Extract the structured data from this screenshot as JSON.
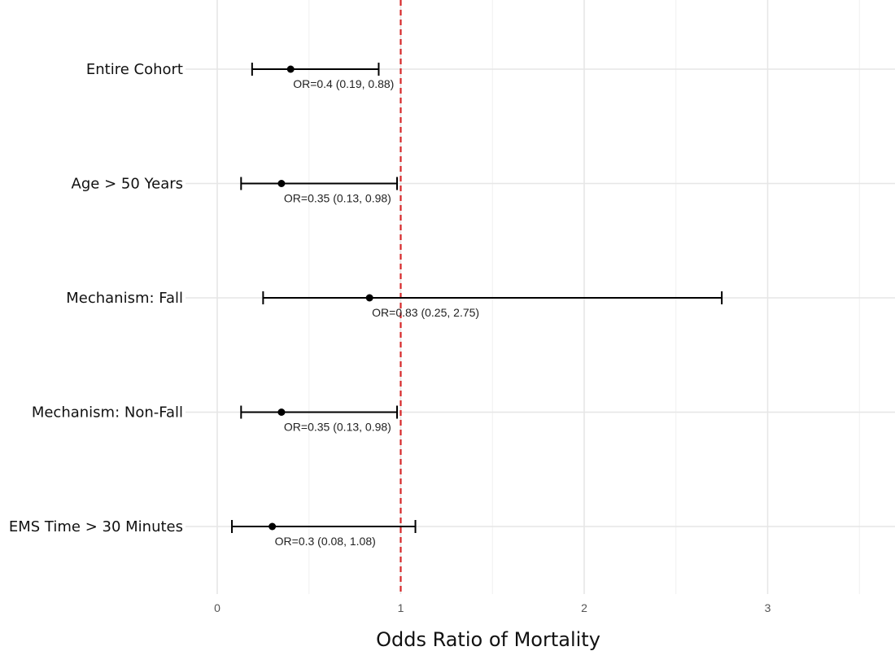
{
  "chart_data": {
    "type": "scatter",
    "subtype": "forest-plot",
    "title": "",
    "xlabel": "Odds Ratio of Mortality",
    "ylabel": "",
    "xlim": [
      0,
      3.7
    ],
    "xticks": [
      0,
      1,
      2,
      3
    ],
    "xtick_labels": [
      "0",
      "1",
      "2",
      "3"
    ],
    "grid": true,
    "reference_line": {
      "x": 1,
      "style": "dashed",
      "color": "#d62728"
    },
    "point_color": "#000000",
    "grid_color": "#e6e6e6",
    "categories": [
      "Entire Cohort",
      "Age > 50 Years",
      "Mechanism: Fall",
      "Mechanism: Non-Fall",
      "EMS Time > 30 Minutes"
    ],
    "or": [
      0.4,
      0.35,
      0.83,
      0.35,
      0.3
    ],
    "ci_lower": [
      0.19,
      0.13,
      0.25,
      0.13,
      0.08
    ],
    "ci_upper": [
      0.88,
      0.98,
      2.75,
      0.98,
      1.08
    ],
    "labels": [
      "OR=0.4 (0.19, 0.88)",
      "OR=0.35 (0.13, 0.98)",
      "OR=0.83 (0.25, 2.75)",
      "OR=0.35 (0.13, 0.98)",
      "OR=0.3 (0.08, 1.08)"
    ]
  }
}
